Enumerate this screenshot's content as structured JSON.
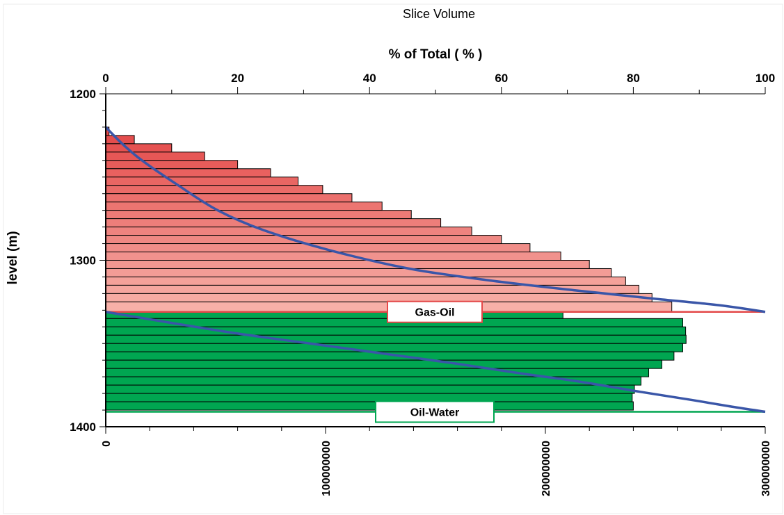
{
  "chart_data": {
    "type": "bar",
    "orientation": "horizontal",
    "title": "Slice Volume",
    "top_axis": {
      "label": "% of Total ( % )",
      "range": [
        0,
        100
      ],
      "ticks": [
        "0",
        "20",
        "40",
        "60",
        "80",
        "100"
      ],
      "tick_values": [
        0,
        20,
        40,
        60,
        80,
        100
      ]
    },
    "bottom_axis": {
      "label": "",
      "range": [
        0,
        300000000
      ],
      "ticks": [
        "0",
        "100000000",
        "200000000",
        "300000000"
      ],
      "tick_values": [
        0,
        100000000,
        200000000,
        300000000
      ]
    },
    "y_axis": {
      "label": "level (m)",
      "range": [
        1200,
        1400
      ],
      "inverted": true,
      "ticks": [
        "1200",
        "1300",
        "1400"
      ],
      "tick_values": [
        1200,
        1300,
        1400
      ]
    },
    "grid": false,
    "bar_colors": {
      "gas_top": "#e34848",
      "gas_bottom": "#f7b0a8",
      "oil": "#00a651"
    },
    "series": [
      {
        "zone": "gas",
        "level_top": [
          1220,
          1225,
          1230,
          1235,
          1240,
          1245,
          1250,
          1255,
          1260,
          1265,
          1270,
          1275,
          1280,
          1285,
          1290,
          1295,
          1300,
          1305,
          1310,
          1315,
          1320,
          1325
        ],
        "level_bottom": [
          1225,
          1230,
          1235,
          1240,
          1245,
          1250,
          1255,
          1260,
          1265,
          1270,
          1275,
          1280,
          1285,
          1290,
          1295,
          1300,
          1305,
          1310,
          1315,
          1320,
          1325,
          1331
        ],
        "values": [
          1500000,
          13000000,
          30000000,
          45000000,
          60000000,
          75000000,
          87500000,
          98700000,
          112000000,
          125700000,
          139000000,
          152400000,
          166500000,
          180000000,
          193000000,
          207000000,
          220000000,
          230000000,
          236500000,
          242500000,
          248500000,
          257500000
        ]
      },
      {
        "zone": "oil",
        "level_top": [
          1331,
          1335,
          1340,
          1345,
          1350,
          1355,
          1360,
          1365,
          1370,
          1375,
          1380,
          1385
        ],
        "level_bottom": [
          1335,
          1340,
          1345,
          1350,
          1355,
          1360,
          1365,
          1370,
          1375,
          1380,
          1385,
          1390
        ],
        "values": [
          208000000,
          262500000,
          263800000,
          264000000,
          262500000,
          258500000,
          253000000,
          247000000,
          243500000,
          240500000,
          239500000,
          240000000
        ]
      }
    ],
    "cumulative_curves": [
      {
        "name": "gas cumulative %",
        "color": "#3a56a8",
        "points": [
          [
            0,
            1220
          ],
          [
            2.5,
            1230
          ],
          [
            5.5,
            1240
          ],
          [
            11,
            1255
          ],
          [
            17,
            1270
          ],
          [
            24,
            1282
          ],
          [
            34,
            1294
          ],
          [
            46,
            1305
          ],
          [
            58,
            1312
          ],
          [
            71,
            1318
          ],
          [
            83,
            1323
          ],
          [
            93,
            1327
          ],
          [
            100,
            1331
          ]
        ]
      },
      {
        "name": "oil cumulative %",
        "color": "#3a56a8",
        "points": [
          [
            0,
            1331
          ],
          [
            9,
            1337
          ],
          [
            20,
            1344
          ],
          [
            31,
            1350
          ],
          [
            42,
            1356
          ],
          [
            53,
            1362
          ],
          [
            63,
            1368
          ],
          [
            72,
            1373
          ],
          [
            81,
            1379
          ],
          [
            89,
            1384
          ],
          [
            95,
            1388
          ],
          [
            100,
            1391
          ]
        ]
      }
    ],
    "contacts": [
      {
        "label": "Gas-Oil",
        "level": 1331,
        "color": "#e34848"
      },
      {
        "label": "Oil-Water",
        "level": 1391,
        "color": "#00a651"
      }
    ]
  }
}
